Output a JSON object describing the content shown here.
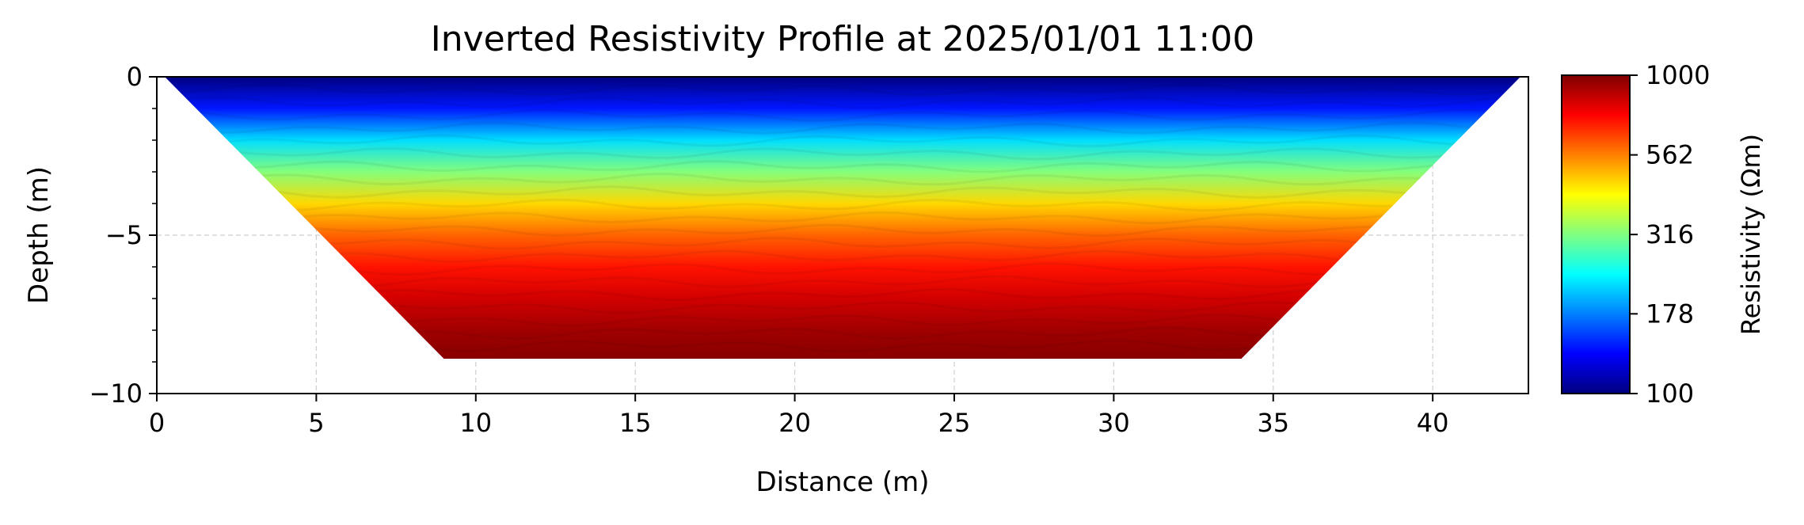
{
  "chart_data": {
    "type": "heatmap",
    "title": "Inverted Resistivity Profile at 2025/01/01 11:00",
    "xlabel": "Distance (m)",
    "ylabel": "Depth (m)",
    "xlim": [
      0,
      43
    ],
    "ylim": [
      -10,
      0
    ],
    "xticks": [
      0,
      5,
      10,
      15,
      20,
      25,
      30,
      35,
      40
    ],
    "xtick_labels": [
      "0",
      "5",
      "10",
      "15",
      "20",
      "25",
      "30",
      "35",
      "40"
    ],
    "yticks": [
      0,
      -5,
      -10
    ],
    "ytick_labels": [
      "0",
      "−5",
      "−10"
    ],
    "grid": true,
    "section_outline": [
      [
        0.25,
        0
      ],
      [
        42.75,
        0
      ],
      [
        34,
        -8.9
      ],
      [
        9,
        -8.9
      ]
    ],
    "depth_profile": {
      "depth": [
        0,
        -1,
        -2,
        -3,
        -4,
        -5,
        -6,
        -7,
        -8,
        -8.9
      ],
      "resistivity": [
        100,
        140,
        220,
        320,
        460,
        600,
        720,
        830,
        930,
        980
      ]
    },
    "colorbar": {
      "label": "Resistivity (Ωm)",
      "scale": "log",
      "range": [
        100,
        1000
      ],
      "ticks": [
        100,
        178,
        316,
        562,
        1000
      ],
      "tick_labels": [
        "100",
        "178",
        "316",
        "562",
        "1000"
      ],
      "colormap": "jet"
    }
  }
}
